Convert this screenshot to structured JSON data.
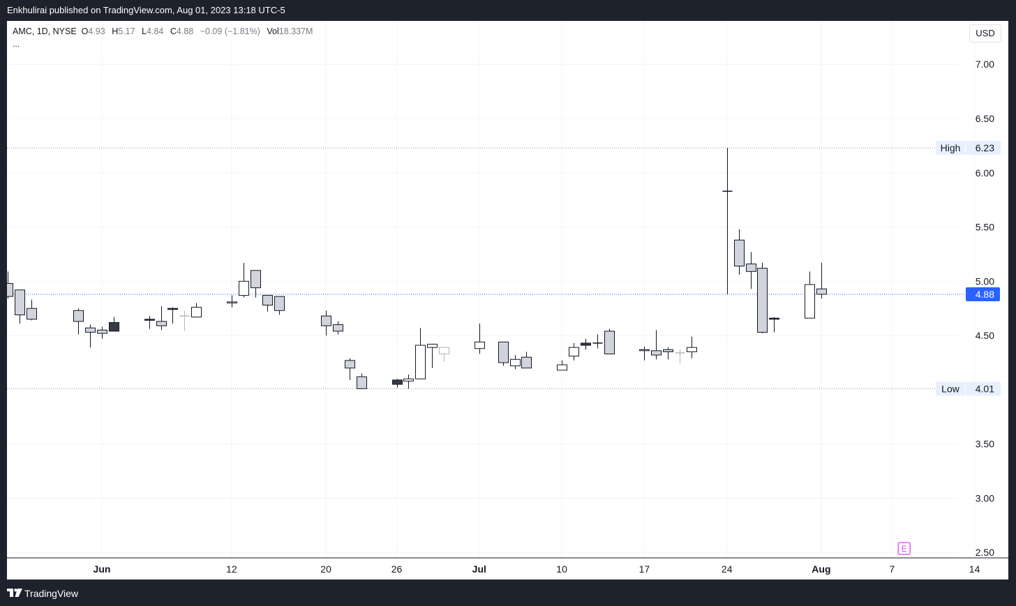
{
  "header": {
    "publish_line": "Enkhulirai published on TradingView.com, Aug 01, 2023 13:18 UTC-5"
  },
  "legend": {
    "symbol": "AMC, 1D, NYSE",
    "open_label": "O",
    "open": "4.93",
    "high_label": "H",
    "high": "5.17",
    "low_label": "L",
    "low": "4.84",
    "close_label": "C",
    "close": "4.88",
    "change": "−0.09 (−1.81%)",
    "vol_label": "Vol",
    "vol": "18.337M",
    "more": "..."
  },
  "currency_button": "USD",
  "footer": {
    "brand": "TradingView"
  },
  "colors": {
    "candle_border": "#131722",
    "candle_fill_gray": "#d1d4dc",
    "candle_fill_dark": "#363a45",
    "price_line": "#2962ff",
    "marker": "#e040fb"
  },
  "chart_data": {
    "type": "candlestick",
    "y_ticks": [
      "7.00",
      "6.50",
      "6.00",
      "5.50",
      "5.00",
      "4.50",
      "3.50",
      "3.00",
      "2.50"
    ],
    "ylim": [
      2.45,
      7.4
    ],
    "x_ticks": [
      {
        "label": "Jun",
        "date": "2023-06-01",
        "bold": true
      },
      {
        "label": "12",
        "date": "2023-06-12",
        "bold": false
      },
      {
        "label": "20",
        "date": "2023-06-20",
        "bold": false
      },
      {
        "label": "26",
        "date": "2023-06-26",
        "bold": false
      },
      {
        "label": "Jul",
        "date": "2023-07-03",
        "bold": true
      },
      {
        "label": "10",
        "date": "2023-07-10",
        "bold": false
      },
      {
        "label": "17",
        "date": "2023-07-17",
        "bold": false
      },
      {
        "label": "24",
        "date": "2023-07-24",
        "bold": false
      },
      {
        "label": "Aug",
        "date": "2023-08-01",
        "bold": true
      },
      {
        "label": "7",
        "date": "2023-08-07",
        "bold": false
      },
      {
        "label": "14",
        "date": "2023-08-14",
        "bold": false
      }
    ],
    "high_line": {
      "label": "High",
      "value": "6.23"
    },
    "low_line": {
      "label": "Low",
      "value": "4.01"
    },
    "last_price": "4.88",
    "earnings_marker": {
      "label": "E",
      "date": "2023-08-08"
    },
    "candles": [
      {
        "date": "2023-05-24",
        "o": 4.98,
        "h": 5.09,
        "l": 4.84,
        "c": 4.86,
        "fill": "gray"
      },
      {
        "date": "2023-05-25",
        "o": 4.92,
        "h": 4.92,
        "l": 4.61,
        "c": 4.69,
        "fill": "gray"
      },
      {
        "date": "2023-05-26",
        "o": 4.75,
        "h": 4.83,
        "l": 4.64,
        "c": 4.65,
        "fill": "gray"
      },
      {
        "date": "2023-05-30",
        "o": 4.73,
        "h": 4.75,
        "l": 4.51,
        "c": 4.63,
        "fill": "gray"
      },
      {
        "date": "2023-05-31",
        "o": 4.57,
        "h": 4.6,
        "l": 4.39,
        "c": 4.53,
        "fill": "gray"
      },
      {
        "date": "2023-06-01",
        "o": 4.52,
        "h": 4.58,
        "l": 4.47,
        "c": 4.55,
        "fill": "gray"
      },
      {
        "date": "2023-06-02",
        "o": 4.54,
        "h": 4.67,
        "l": 4.54,
        "c": 4.62,
        "fill": "dark"
      },
      {
        "date": "2023-06-05",
        "o": 4.64,
        "h": 4.68,
        "l": 4.56,
        "c": 4.65,
        "fill": "dark"
      },
      {
        "date": "2023-06-06",
        "o": 4.59,
        "h": 4.77,
        "l": 4.55,
        "c": 4.63,
        "fill": "gray"
      },
      {
        "date": "2023-06-07",
        "o": 4.74,
        "h": 4.76,
        "l": 4.61,
        "c": 4.75,
        "fill": "dark"
      },
      {
        "date": "2023-06-08",
        "o": 4.68,
        "h": 4.73,
        "l": 4.54,
        "c": 4.68,
        "fill": "ghost"
      },
      {
        "date": "2023-06-09",
        "o": 4.67,
        "h": 4.8,
        "l": 4.67,
        "c": 4.76,
        "fill": "white"
      },
      {
        "date": "2023-06-12",
        "o": 4.8,
        "h": 4.87,
        "l": 4.76,
        "c": 4.81,
        "fill": "white"
      },
      {
        "date": "2023-06-13",
        "o": 4.87,
        "h": 5.17,
        "l": 4.85,
        "c": 5.0,
        "fill": "white"
      },
      {
        "date": "2023-06-14",
        "o": 5.1,
        "h": 5.1,
        "l": 4.85,
        "c": 4.94,
        "fill": "gray"
      },
      {
        "date": "2023-06-15",
        "o": 4.87,
        "h": 4.87,
        "l": 4.72,
        "c": 4.78,
        "fill": "gray"
      },
      {
        "date": "2023-06-16",
        "o": 4.86,
        "h": 4.86,
        "l": 4.69,
        "c": 4.73,
        "fill": "gray"
      },
      {
        "date": "2023-06-20",
        "o": 4.68,
        "h": 4.73,
        "l": 4.5,
        "c": 4.59,
        "fill": "gray"
      },
      {
        "date": "2023-06-21",
        "o": 4.6,
        "h": 4.63,
        "l": 4.51,
        "c": 4.54,
        "fill": "gray"
      },
      {
        "date": "2023-06-22",
        "o": 4.27,
        "h": 4.29,
        "l": 4.09,
        "c": 4.2,
        "fill": "gray"
      },
      {
        "date": "2023-06-23",
        "o": 4.12,
        "h": 4.15,
        "l": 4.01,
        "c": 4.01,
        "fill": "gray"
      },
      {
        "date": "2023-06-26",
        "o": 4.09,
        "h": 4.1,
        "l": 4.02,
        "c": 4.05,
        "fill": "dark"
      },
      {
        "date": "2023-06-27",
        "o": 4.08,
        "h": 4.14,
        "l": 4.01,
        "c": 4.1,
        "fill": "white"
      },
      {
        "date": "2023-06-28",
        "o": 4.1,
        "h": 4.57,
        "l": 4.1,
        "c": 4.41,
        "fill": "white"
      },
      {
        "date": "2023-06-29",
        "o": 4.39,
        "h": 4.42,
        "l": 4.2,
        "c": 4.42,
        "fill": "white"
      },
      {
        "date": "2023-06-30",
        "o": 4.39,
        "h": 4.39,
        "l": 4.26,
        "c": 4.33,
        "fill": "ghost"
      },
      {
        "date": "2023-07-03",
        "o": 4.38,
        "h": 4.61,
        "l": 4.33,
        "c": 4.44,
        "fill": "white"
      },
      {
        "date": "2023-07-05",
        "o": 4.44,
        "h": 4.44,
        "l": 4.22,
        "c": 4.25,
        "fill": "gray"
      },
      {
        "date": "2023-07-06",
        "o": 4.22,
        "h": 4.32,
        "l": 4.19,
        "c": 4.28,
        "fill": "white"
      },
      {
        "date": "2023-07-07",
        "o": 4.3,
        "h": 4.35,
        "l": 4.2,
        "c": 4.2,
        "fill": "gray"
      },
      {
        "date": "2023-07-10",
        "o": 4.18,
        "h": 4.27,
        "l": 4.18,
        "c": 4.23,
        "fill": "white"
      },
      {
        "date": "2023-07-11",
        "o": 4.31,
        "h": 4.43,
        "l": 4.27,
        "c": 4.39,
        "fill": "white"
      },
      {
        "date": "2023-07-12",
        "o": 4.41,
        "h": 4.47,
        "l": 4.37,
        "c": 4.43,
        "fill": "dark"
      },
      {
        "date": "2023-07-13",
        "o": 4.43,
        "h": 4.51,
        "l": 4.38,
        "c": 4.43,
        "fill": "dark"
      },
      {
        "date": "2023-07-14",
        "o": 4.54,
        "h": 4.56,
        "l": 4.33,
        "c": 4.33,
        "fill": "gray"
      },
      {
        "date": "2023-07-17",
        "o": 4.36,
        "h": 4.4,
        "l": 4.27,
        "c": 4.37,
        "fill": "gray"
      },
      {
        "date": "2023-07-18",
        "o": 4.36,
        "h": 4.55,
        "l": 4.28,
        "c": 4.32,
        "fill": "gray"
      },
      {
        "date": "2023-07-19",
        "o": 4.35,
        "h": 4.39,
        "l": 4.28,
        "c": 4.37,
        "fill": "gray"
      },
      {
        "date": "2023-07-20",
        "o": 4.34,
        "h": 4.37,
        "l": 4.24,
        "c": 4.34,
        "fill": "ghost"
      },
      {
        "date": "2023-07-21",
        "o": 4.35,
        "h": 4.49,
        "l": 4.29,
        "c": 4.39,
        "fill": "white"
      },
      {
        "date": "2023-07-24",
        "o": 5.83,
        "h": 6.23,
        "l": 4.88,
        "c": 5.83,
        "fill": "dark"
      },
      {
        "date": "2023-07-25",
        "o": 5.38,
        "h": 5.48,
        "l": 5.06,
        "c": 5.14,
        "fill": "gray"
      },
      {
        "date": "2023-07-26",
        "o": 5.16,
        "h": 5.27,
        "l": 4.93,
        "c": 5.09,
        "fill": "gray"
      },
      {
        "date": "2023-07-27",
        "o": 5.12,
        "h": 5.17,
        "l": 4.52,
        "c": 4.53,
        "fill": "gray"
      },
      {
        "date": "2023-07-28",
        "o": 4.66,
        "h": 4.67,
        "l": 4.53,
        "c": 4.65,
        "fill": "dark"
      },
      {
        "date": "2023-07-31",
        "o": 4.66,
        "h": 5.09,
        "l": 4.66,
        "c": 4.97,
        "fill": "white"
      },
      {
        "date": "2023-08-01",
        "o": 4.93,
        "h": 5.17,
        "l": 4.84,
        "c": 4.88,
        "fill": "gray"
      }
    ]
  }
}
